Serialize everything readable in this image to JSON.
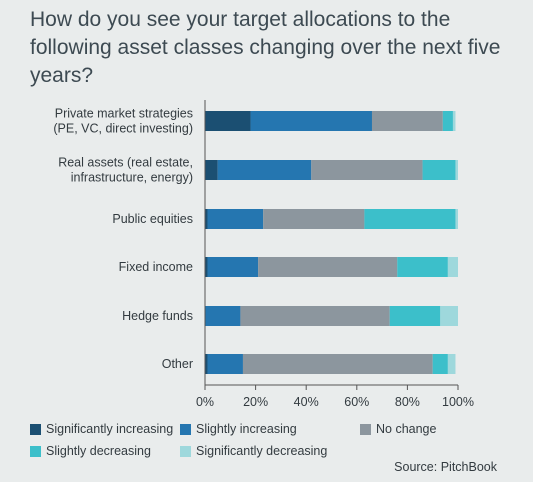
{
  "chart_data": {
    "type": "bar",
    "orientation": "horizontal",
    "stacked": true,
    "title": "How do you see your target allocations to the following asset classes changing over the next five years?",
    "categories": [
      [
        "Private market strategies",
        "(PE, VC, direct investing)"
      ],
      [
        "Real assets (real estate,",
        "infrastructure, energy)"
      ],
      [
        "Public equities"
      ],
      [
        "Fixed income"
      ],
      [
        "Hedge funds"
      ],
      [
        "Other"
      ]
    ],
    "series": [
      {
        "name": "Significantly increasing",
        "color": "#1b4f72",
        "values": [
          18,
          5,
          1,
          1,
          0,
          1
        ]
      },
      {
        "name": "Slightly increasing",
        "color": "#2576b0",
        "values": [
          48,
          37,
          22,
          20,
          14,
          14
        ]
      },
      {
        "name": "No change",
        "color": "#8c969e",
        "values": [
          28,
          44,
          40,
          55,
          59,
          75
        ]
      },
      {
        "name": "Slightly decreasing",
        "color": "#3cbfca",
        "values": [
          4,
          13,
          36,
          20,
          20,
          6
        ]
      },
      {
        "name": "Significantly decreasing",
        "color": "#9ed8dc",
        "values": [
          1,
          1,
          1,
          4,
          7,
          3
        ]
      }
    ],
    "xlim": [
      0,
      100
    ],
    "xticks": [
      "0%",
      "20%",
      "40%",
      "60%",
      "80%",
      "100%"
    ],
    "grid": false,
    "legend_position": "bottom",
    "source": "Source: PitchBook"
  }
}
